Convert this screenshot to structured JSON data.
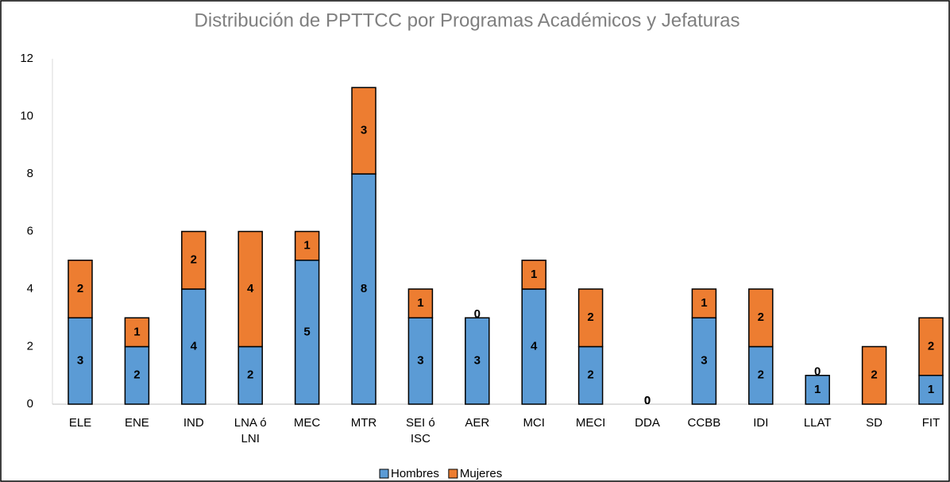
{
  "chart_data": {
    "type": "stacked_bar",
    "title": "Distribución de PPTTCC por Programas Académicos y Jefaturas",
    "categories": [
      "ELE",
      "ENE",
      "IND",
      "LNA ó LNI",
      "MEC",
      "MTR",
      "SEI ó ISC",
      "AER",
      "MCI",
      "MECI",
      "DDA",
      "CCBB",
      "IDI",
      "LLAT",
      "SD",
      "FIT"
    ],
    "series": [
      {
        "name": "Hombres",
        "color": "#5b9bd5",
        "values": [
          3,
          2,
          4,
          2,
          5,
          8,
          3,
          3,
          4,
          2,
          0,
          3,
          2,
          1,
          0,
          1
        ]
      },
      {
        "name": "Mujeres",
        "color": "#ed7d31",
        "values": [
          2,
          1,
          2,
          4,
          1,
          3,
          1,
          0,
          1,
          2,
          0,
          1,
          2,
          0,
          2,
          2
        ]
      }
    ],
    "ylim": [
      0,
      12
    ],
    "yticks": [
      0,
      2,
      4,
      6,
      8,
      10,
      12
    ],
    "grid": false,
    "legend": "bottom"
  }
}
